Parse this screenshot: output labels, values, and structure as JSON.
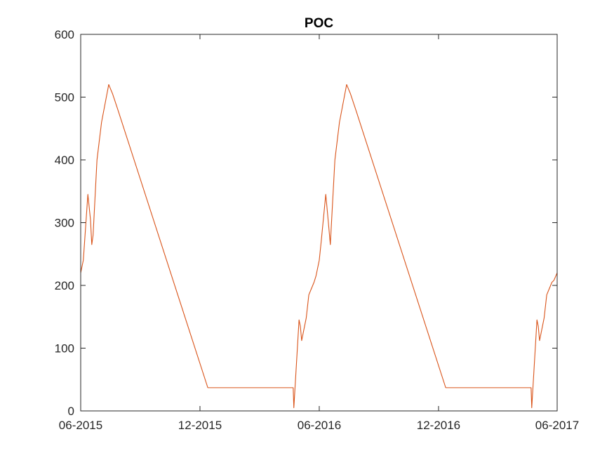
{
  "chart_data": {
    "type": "line",
    "title": "POC",
    "xlabel": "",
    "ylabel": "",
    "x_axis_type": "date",
    "xlim": [
      "2015-06-01",
      "2017-06-01"
    ],
    "ylim": [
      0,
      600
    ],
    "grid": false,
    "legend": "none",
    "x_ticks": [
      {
        "date": "2015-06-01",
        "label": "06-2015"
      },
      {
        "date": "2015-12-01",
        "label": "12-2015"
      },
      {
        "date": "2016-06-01",
        "label": "06-2016"
      },
      {
        "date": "2016-12-01",
        "label": "12-2016"
      },
      {
        "date": "2017-06-01",
        "label": "06-2017"
      }
    ],
    "y_ticks": [
      {
        "value": 0,
        "label": "0"
      },
      {
        "value": 100,
        "label": "100"
      },
      {
        "value": 200,
        "label": "200"
      },
      {
        "value": 300,
        "label": "300"
      },
      {
        "value": 400,
        "label": "400"
      },
      {
        "value": 500,
        "label": "500"
      },
      {
        "value": 600,
        "label": "600"
      }
    ],
    "series": [
      {
        "color": "#D95319",
        "x": [
          "2015-06-01",
          "2015-06-05",
          "2015-06-12",
          "2015-06-16",
          "2015-06-18",
          "2015-06-20",
          "2015-06-26",
          "2015-07-03",
          "2015-07-14",
          "2015-07-20",
          "2015-07-28",
          "2015-12-13",
          "2016-04-22",
          "2016-04-23",
          "2016-05-01",
          "2016-05-03",
          "2016-05-05",
          "2016-05-12",
          "2016-05-16",
          "2016-05-20",
          "2016-05-24",
          "2016-05-27",
          "2016-06-01",
          "2016-06-04",
          "2016-06-11",
          "2016-06-15",
          "2016-06-18",
          "2016-06-19",
          "2016-06-25",
          "2016-07-02",
          "2016-07-13",
          "2016-07-19",
          "2016-07-27",
          "2016-12-12",
          "2017-04-22",
          "2017-04-23",
          "2017-05-01",
          "2017-05-03",
          "2017-05-05",
          "2017-05-12",
          "2017-05-16",
          "2017-05-20",
          "2017-05-24",
          "2017-05-27",
          "2017-06-01"
        ],
        "y": [
          220,
          240,
          345,
          305,
          265,
          280,
          400,
          460,
          520,
          505,
          480,
          37,
          37,
          5,
          145,
          135,
          112,
          148,
          185,
          195,
          205,
          215,
          240,
          270,
          345,
          300,
          265,
          285,
          400,
          460,
          520,
          505,
          480,
          37,
          37,
          5,
          145,
          135,
          112,
          148,
          185,
          195,
          205,
          208,
          220
        ]
      }
    ]
  }
}
